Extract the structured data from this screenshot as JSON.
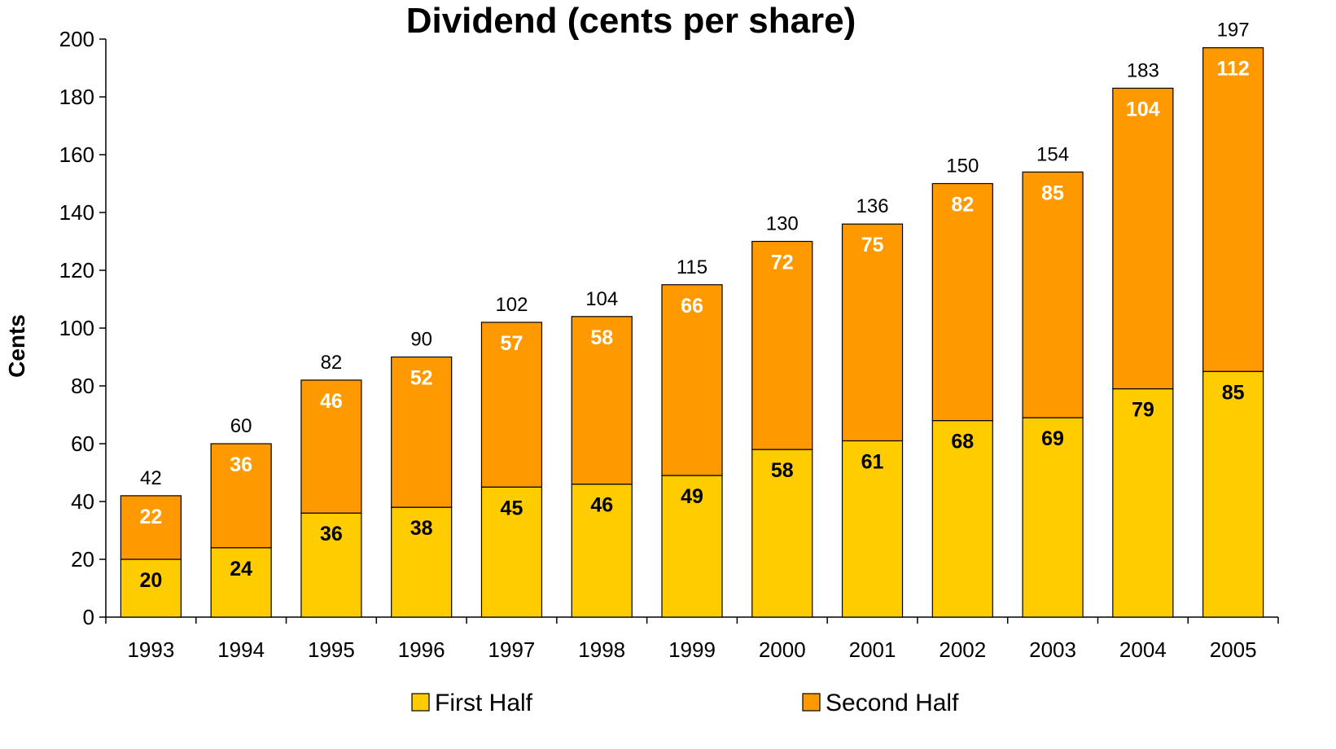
{
  "chart_data": {
    "type": "bar",
    "stacked": true,
    "title": "Dividend (cents per share)",
    "xlabel": "",
    "ylabel": "Cents",
    "ylim": [
      0,
      200
    ],
    "yticks": [
      0,
      20,
      40,
      60,
      80,
      100,
      120,
      140,
      160,
      180,
      200
    ],
    "grid": false,
    "legend_position": "bottom",
    "categories": [
      "1993",
      "1994",
      "1995",
      "1996",
      "1997",
      "1998",
      "1999",
      "2000",
      "2001",
      "2002",
      "2003",
      "2004",
      "2005"
    ],
    "series": [
      {
        "name": "First Half",
        "color": "#FFCC00",
        "label_color": "#000000",
        "values": [
          20,
          24,
          36,
          38,
          45,
          46,
          49,
          58,
          61,
          68,
          69,
          79,
          85
        ]
      },
      {
        "name": "Second Half",
        "color": "#FF9900",
        "label_color": "#FFFFFF",
        "values": [
          22,
          36,
          46,
          52,
          57,
          58,
          66,
          72,
          75,
          82,
          85,
          104,
          112
        ]
      }
    ],
    "totals": [
      42,
      60,
      82,
      90,
      102,
      104,
      115,
      130,
      136,
      150,
      154,
      183,
      197
    ]
  }
}
